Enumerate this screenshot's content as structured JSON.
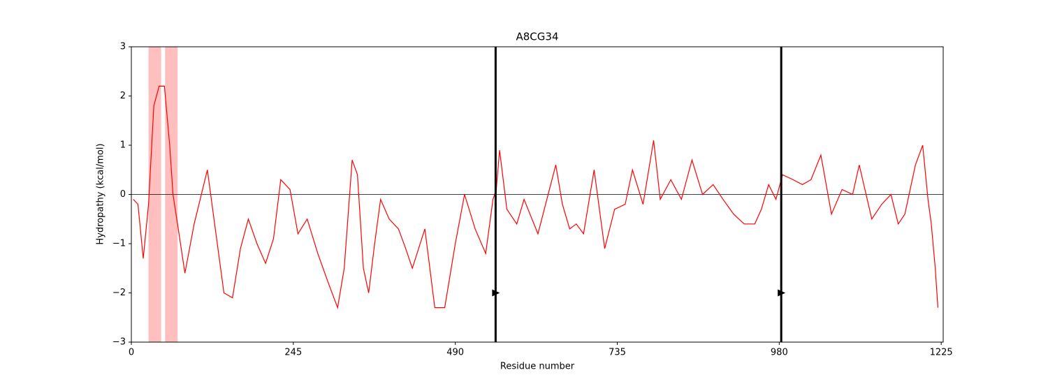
{
  "chart_data": {
    "type": "line",
    "title": "A8CG34",
    "x_label": "Residue number",
    "y_label": "Hydropathy (kcal/mol)",
    "xlim": [
      0,
      1228
    ],
    "ylim": [
      -3,
      3
    ],
    "xticks": [
      0,
      245,
      490,
      735,
      980,
      1225
    ],
    "yticks": [
      {
        "value": -3,
        "label": "−3"
      },
      {
        "value": -2,
        "label": "−2"
      },
      {
        "value": -1,
        "label": "−1"
      },
      0,
      1,
      2,
      3
    ],
    "hline": 0,
    "spans": [
      [
        26,
        45
      ],
      [
        51,
        70
      ]
    ],
    "span_color": "#ffbfbf",
    "vlines": [
      551,
      983
    ],
    "markers": {
      "x": [
        551,
        983
      ],
      "y": [
        -2,
        -2
      ]
    },
    "series": [
      {
        "color": "#ff0000",
        "x": [
          3,
          10,
          18,
          26,
          34,
          42,
          50,
          58,
          63,
          71,
          81,
          95,
          115,
          128,
          140,
          153,
          165,
          177,
          190,
          203,
          215,
          226,
          240,
          252,
          266,
          282,
          298,
          312,
          322,
          334,
          342,
          351,
          359,
          368,
          377,
          390,
          404,
          415,
          425,
          444,
          459,
          474,
          490,
          504,
          520,
          536,
          547,
          552,
          557,
          568,
          583,
          594,
          615,
          642,
          652,
          663,
          673,
          684,
          700,
          716,
          731,
          747,
          758,
          774,
          790,
          800,
          816,
          832,
          848,
          864,
          880,
          895,
          911,
          927,
          943,
          953,
          964,
          975,
          985,
          1001,
          1015,
          1028,
          1043,
          1059,
          1075,
          1091,
          1101,
          1120,
          1135,
          1149,
          1160,
          1170,
          1186,
          1197,
          1205,
          1210,
          1216,
          1220
        ],
        "values": [
          -0.1,
          -0.2,
          -1.3,
          -0.2,
          1.8,
          2.2,
          2.2,
          1.0,
          0.0,
          -0.7,
          -1.6,
          -0.6,
          0.5,
          -0.8,
          -2.0,
          -2.1,
          -1.1,
          -0.5,
          -1.0,
          -1.4,
          -0.9,
          0.3,
          0.1,
          -0.8,
          -0.5,
          -1.2,
          -1.8,
          -2.3,
          -1.5,
          0.7,
          0.4,
          -1.5,
          -2.0,
          -1.0,
          -0.1,
          -0.5,
          -0.7,
          -1.1,
          -1.5,
          -0.7,
          -2.3,
          -2.3,
          -1.0,
          0.0,
          -0.7,
          -1.2,
          -0.1,
          0.1,
          0.9,
          -0.3,
          -0.6,
          -0.1,
          -0.8,
          0.6,
          -0.2,
          -0.7,
          -0.6,
          -0.8,
          0.5,
          -1.1,
          -0.3,
          -0.2,
          0.5,
          -0.2,
          1.1,
          -0.1,
          0.3,
          -0.1,
          0.7,
          0.0,
          0.2,
          -0.1,
          -0.4,
          -0.6,
          -0.6,
          -0.3,
          0.2,
          -0.1,
          0.4,
          0.3,
          0.2,
          0.3,
          0.8,
          -0.4,
          0.1,
          0.0,
          0.6,
          -0.5,
          -0.2,
          0.0,
          -0.6,
          -0.4,
          0.6,
          1.0,
          -0.1,
          -0.6,
          -1.5,
          -2.3
        ]
      }
    ]
  }
}
